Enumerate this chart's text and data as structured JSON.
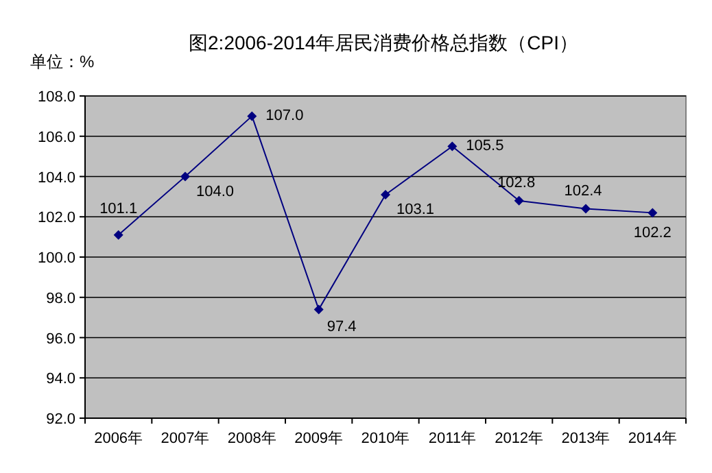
{
  "chart_data": {
    "type": "line",
    "title": "图2:2006-2014年居民消费价格总指数（CPI）",
    "annotations": [
      "单位：%"
    ],
    "categories": [
      "2006年",
      "2007年",
      "2008年",
      "2009年",
      "2010年",
      "2011年",
      "2012年",
      "2013年",
      "2014年"
    ],
    "series": [
      {
        "color": "#000080",
        "values": [
          101.1,
          104.0,
          107.0,
          97.4,
          103.1,
          105.5,
          102.8,
          102.4,
          102.2
        ],
        "value_labels": [
          "101.1",
          "104.0",
          "107.0",
          "97.4",
          "103.1",
          "105.5",
          "102.8",
          "102.4",
          "102.2"
        ]
      }
    ],
    "ylim": [
      92,
      108
    ],
    "yticks": [
      {
        "value": 92,
        "label": "92.0"
      },
      {
        "value": 94,
        "label": "94.0"
      },
      {
        "value": 96,
        "label": "96.0"
      },
      {
        "value": 98,
        "label": "98.0"
      },
      {
        "value": 100,
        "label": "100.0"
      },
      {
        "value": 102,
        "label": "102.0"
      },
      {
        "value": 104,
        "label": "104.0"
      },
      {
        "value": 106,
        "label": "106.0"
      },
      {
        "value": 108,
        "label": "108.0"
      }
    ],
    "grid": "y",
    "marker": "diamond",
    "line_style": "solid"
  }
}
